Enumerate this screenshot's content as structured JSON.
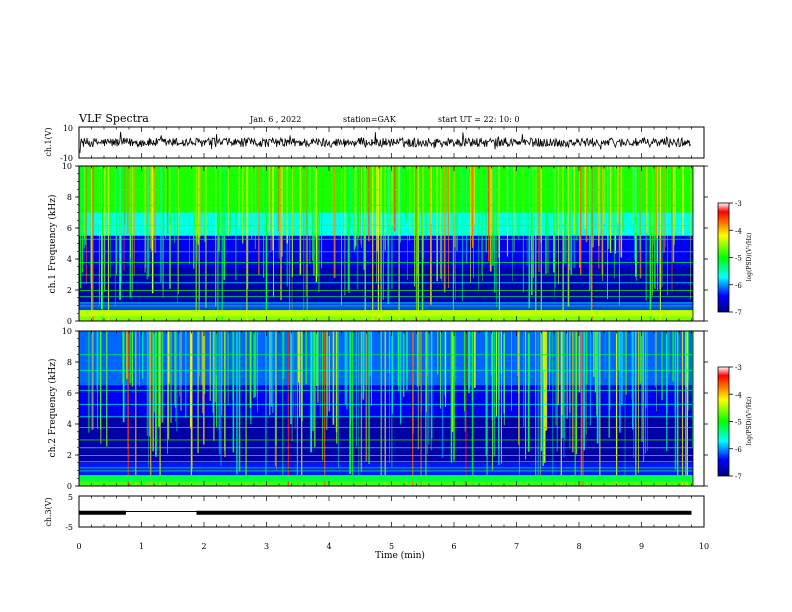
{
  "header": {
    "title": "VLF Spectra",
    "date": "Jan. 6 , 2022",
    "station": "station=GAK",
    "start": "start UT =  22: 10: 0"
  },
  "colorbar": {
    "label": "log(PSD)(V²/Hz)",
    "ticks": [
      "-3",
      "-4",
      "-5",
      "-6",
      "-7"
    ],
    "stops": [
      "#ff0000",
      "#ffff00",
      "#00ff00",
      "#00ffff",
      "#0000ff",
      "#00007f"
    ]
  },
  "chart_data": [
    {
      "type": "line",
      "name": "waveform-ch1",
      "ylabel": "ch.1(V)",
      "ylim": [
        -10,
        10
      ],
      "yticks": [
        "10",
        "-10"
      ],
      "x_range_min": [
        0,
        9.8
      ],
      "amplitude_v": [
        -3,
        3
      ]
    },
    {
      "type": "heatmap",
      "name": "spectrogram-ch1",
      "ylabel": "ch.1 Frequency (kHz)",
      "ylim": [
        0,
        10
      ],
      "yticks": [
        "0",
        "2",
        "4",
        "6",
        "8",
        "10"
      ],
      "clim": [
        -7,
        -3
      ],
      "x_range_min": [
        0,
        9.8
      ]
    },
    {
      "type": "heatmap",
      "name": "spectrogram-ch2",
      "ylabel": "ch.2 Frequency (kHz)",
      "ylim": [
        0,
        10
      ],
      "yticks": [
        "0",
        "2",
        "4",
        "6",
        "8",
        "10"
      ],
      "clim": [
        -7,
        -3
      ],
      "x_range_min": [
        0,
        9.8
      ]
    },
    {
      "type": "line",
      "name": "ch3",
      "ylabel": "ch.3(V)",
      "ylim": [
        -5,
        5
      ],
      "yticks": [
        "5",
        "-5"
      ],
      "segments": [
        {
          "x": [
            0,
            0.75
          ],
          "y": -0.4
        },
        {
          "x": [
            0.75,
            1.88
          ],
          "y": 0
        },
        {
          "x": [
            1.88,
            9.8
          ],
          "y": -0.4
        }
      ]
    }
  ],
  "xaxis": {
    "label": "Time (min)",
    "ticks": [
      "0",
      "1",
      "2",
      "3",
      "4",
      "5",
      "6",
      "7",
      "8",
      "9",
      "10"
    ],
    "range": [
      0,
      10
    ]
  }
}
